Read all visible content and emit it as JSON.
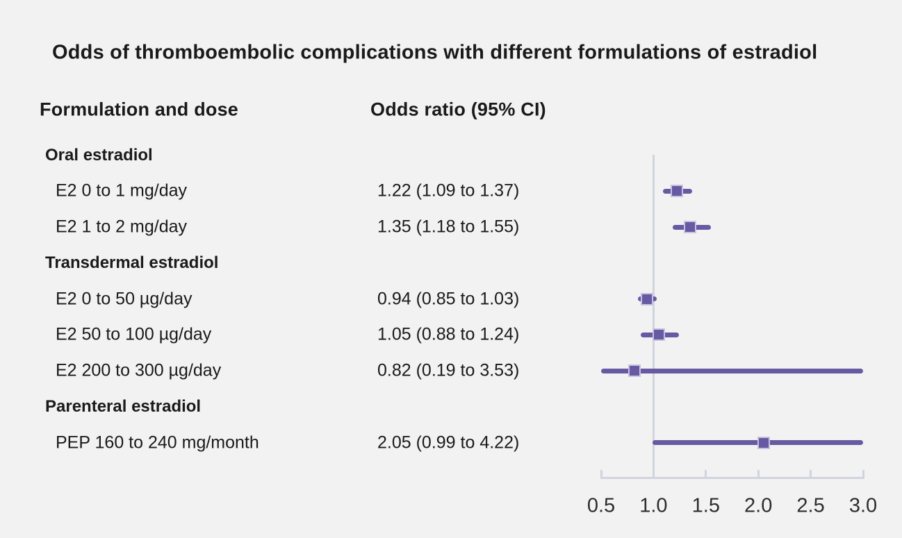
{
  "title": "Odds of thromboembolic complications with different formulations of estradiol",
  "columns": {
    "formulation": "Formulation and dose",
    "odds_ratio": "Odds ratio (95% CI)"
  },
  "chart_data": {
    "type": "forest",
    "title": "Odds of thromboembolic complications with different formulations of estradiol",
    "xlabel": "",
    "x_axis": {
      "range": [
        0.5,
        3.0
      ],
      "ticks": [
        0.5,
        1.0,
        1.5,
        2.0,
        2.5,
        3.0
      ],
      "tick_labels": [
        "0.5",
        "1.0",
        "1.5",
        "2.0",
        "2.5",
        "3.0"
      ],
      "reference_line": 1.0
    },
    "rows": [
      {
        "kind": "group",
        "label": "Oral estradiol"
      },
      {
        "kind": "item",
        "label": "E2 0 to 1 mg/day",
        "or_text": "1.22 (1.09 to 1.37)",
        "estimate": 1.22,
        "ci_low": 1.09,
        "ci_high": 1.37
      },
      {
        "kind": "item",
        "label": "E2 1 to 2 mg/day",
        "or_text": "1.35 (1.18 to 1.55)",
        "estimate": 1.35,
        "ci_low": 1.18,
        "ci_high": 1.55
      },
      {
        "kind": "group",
        "label": "Transdermal estradiol"
      },
      {
        "kind": "item",
        "label": "E2 0 to 50 µg/day",
        "or_text": "0.94 (0.85 to 1.03)",
        "estimate": 0.94,
        "ci_low": 0.85,
        "ci_high": 1.03
      },
      {
        "kind": "item",
        "label": "E2 50 to 100 µg/day",
        "or_text": "1.05 (0.88 to 1.24)",
        "estimate": 1.05,
        "ci_low": 0.88,
        "ci_high": 1.24
      },
      {
        "kind": "item",
        "label": "E2 200 to 300 µg/day",
        "or_text": "0.82 (0.19 to 3.53)",
        "estimate": 0.82,
        "ci_low": 0.19,
        "ci_high": 3.53
      },
      {
        "kind": "group",
        "label": "Parenteral estradiol"
      },
      {
        "kind": "item",
        "label": "PEP 160 to 240 mg/month",
        "or_text": "2.05 (0.99 to 4.22)",
        "estimate": 2.05,
        "ci_low": 0.99,
        "ci_high": 4.22
      }
    ]
  },
  "colors": {
    "background": "#f2f2f2",
    "text": "#1a1a1a",
    "marker": "#675aa2",
    "marker_edge": "#c8c2e2",
    "axis": "#d1d4e0"
  }
}
